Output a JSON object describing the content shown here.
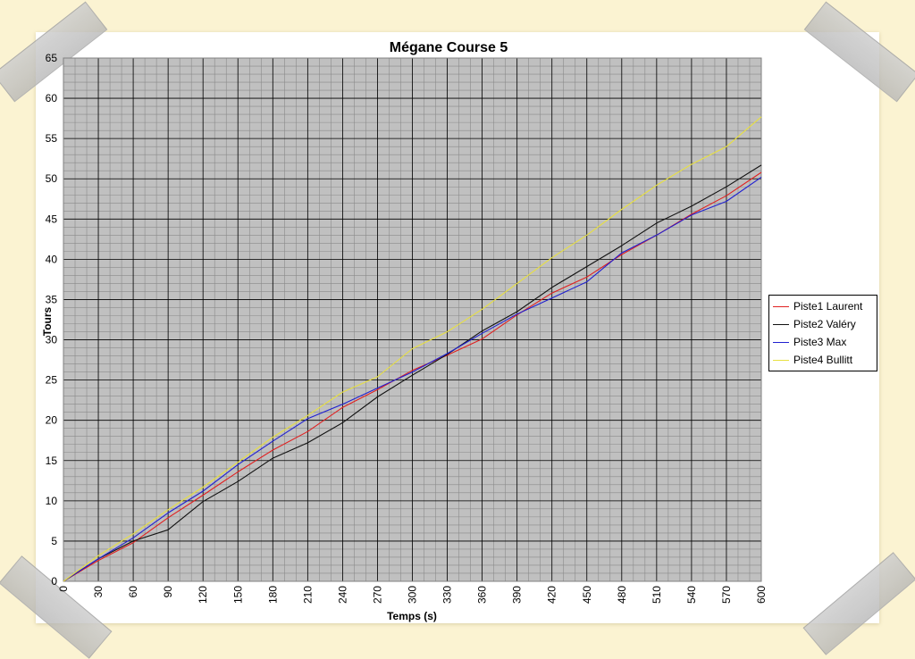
{
  "chart_data": {
    "type": "line",
    "title": "Mégane Course 5",
    "xlabel": "Temps (s)",
    "ylabel": "Tours",
    "xlim": [
      0,
      600
    ],
    "ylim": [
      0,
      65
    ],
    "xticks": [
      0,
      30,
      60,
      90,
      120,
      150,
      180,
      210,
      240,
      270,
      300,
      330,
      360,
      390,
      420,
      450,
      480,
      510,
      540,
      570,
      600
    ],
    "yticks": [
      0,
      5,
      10,
      15,
      20,
      25,
      30,
      35,
      40,
      45,
      50,
      55,
      60,
      65
    ],
    "grid": true,
    "legend_position": "right",
    "x": [
      0,
      30,
      60,
      90,
      120,
      150,
      180,
      210,
      240,
      270,
      300,
      330,
      360,
      390,
      420,
      450,
      480,
      510,
      540,
      570,
      600
    ],
    "series": [
      {
        "name": "Piste1 Laurent",
        "color": "#e02020",
        "values": [
          0,
          2.6,
          4.8,
          7.9,
          10.7,
          13.6,
          16.3,
          18.6,
          21.6,
          23.8,
          26.2,
          28.1,
          30.1,
          33.1,
          35.8,
          37.8,
          40.6,
          43.0,
          45.6,
          47.9,
          50.8
        ]
      },
      {
        "name": "Piste2 Valéry",
        "color": "#111111",
        "values": [
          0,
          2.8,
          5.0,
          6.4,
          9.9,
          12.4,
          15.3,
          17.2,
          19.7,
          22.9,
          25.6,
          28.2,
          31.1,
          33.5,
          36.5,
          39.1,
          41.7,
          44.5,
          46.6,
          49.0,
          51.7
        ]
      },
      {
        "name": "Piste3 Max",
        "color": "#2020d0",
        "values": [
          0,
          2.8,
          5.4,
          8.5,
          11.2,
          14.5,
          17.4,
          20.2,
          22.0,
          24.0,
          26.0,
          28.3,
          30.8,
          33.2,
          35.2,
          37.2,
          40.8,
          43.0,
          45.5,
          47.2,
          50.2
        ]
      },
      {
        "name": "Piste4 Bullitt",
        "color": "#e8e040",
        "values": [
          0,
          3.2,
          5.9,
          8.9,
          11.7,
          14.8,
          17.9,
          20.6,
          23.5,
          25.4,
          28.9,
          31.0,
          33.8,
          37.0,
          40.2,
          43.0,
          46.2,
          49.2,
          51.8,
          54.0,
          57.7
        ]
      }
    ]
  }
}
